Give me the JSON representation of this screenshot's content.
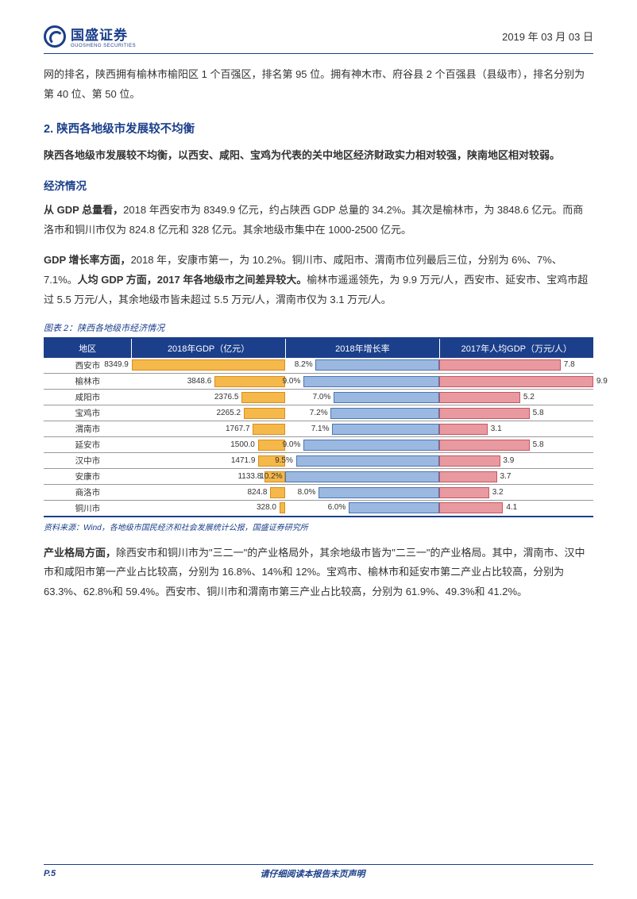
{
  "header": {
    "logo_main": "国盛证券",
    "logo_sub": "GUOSHENG SECURITIES",
    "date": "2019 年 03 月 03 日"
  },
  "intro_para": "网的排名，陕西拥有榆林市榆阳区 1 个百强区，排名第 95 位。拥有神木市、府谷县 2 个百强县（县级市），排名分别为第 40 位、第 50 位。",
  "section2": {
    "num": "2.",
    "title": " 陕西各地级市发展较不均衡",
    "summary": "陕西各地级市发展较不均衡，以西安、咸阳、宝鸡为代表的关中地区经济财政实力相对较强，陕南地区相对较弱。",
    "sub_heading": "经济情况",
    "para1_pre": "从 GDP 总量看，",
    "para1_body": "2018 年西安市为 8349.9 亿元，约占陕西 GDP 总量的 34.2%。其次是榆林市，为 3848.6 亿元。而商洛市和铜川市仅为 824.8 亿元和 328 亿元。其余地级市集中在 1000-2500 亿元。",
    "para2_b1": "GDP 增长率方面，",
    "para2_t1": "2018 年，安康市第一，为 10.2%。铜川市、咸阳市、渭南市位列最后三位，分别为 6%、7%、7.1%。",
    "para2_b2": "人均 GDP 方面，2017 年各地级市之间差异较大。",
    "para2_t2": "榆林市遥遥领先，为 9.9 万元/人，西安市、延安市、宝鸡市超过 5.5 万元/人，其余地级市皆未超过 5.5 万元/人，渭南市仅为 3.1 万元/人。"
  },
  "chart": {
    "title": "图表 2：陕西各地级市经济情况",
    "headers": [
      "地区",
      "2018年GDP（亿元）",
      "2018年增长率",
      "2017年人均GDP（万元/人）"
    ],
    "gdp_max": 8349.9,
    "growth_max": 10.2,
    "percap_max": 9.9,
    "colors": {
      "gdp_fill": "#f5b84a",
      "gdp_border": "#d98e1a",
      "growth_fill": "#9bb8e0",
      "growth_border": "#4a75b8",
      "percap_fill": "#e89aa0",
      "percap_border": "#c85560"
    },
    "rows": [
      {
        "region": "西安市",
        "gdp": 8349.9,
        "growth": 8.2,
        "percap": 7.8
      },
      {
        "region": "榆林市",
        "gdp": 3848.6,
        "growth": 9.0,
        "percap": 9.9
      },
      {
        "region": "咸阳市",
        "gdp": 2376.5,
        "growth": 7.0,
        "percap": 5.2
      },
      {
        "region": "宝鸡市",
        "gdp": 2265.2,
        "growth": 7.2,
        "percap": 5.8
      },
      {
        "region": "渭南市",
        "gdp": 1767.7,
        "growth": 7.1,
        "percap": 3.1
      },
      {
        "region": "延安市",
        "gdp": 1500.0,
        "growth": 9.0,
        "percap": 5.8
      },
      {
        "region": "汉中市",
        "gdp": 1471.9,
        "growth": 9.5,
        "percap": 3.9
      },
      {
        "region": "安康市",
        "gdp": 1133.8,
        "growth": 10.2,
        "percap": 3.7
      },
      {
        "region": "商洛市",
        "gdp": 824.8,
        "growth": 8.0,
        "percap": 3.2
      },
      {
        "region": "铜川市",
        "gdp": 328.0,
        "growth": 6.0,
        "percap": 4.1
      }
    ],
    "source": "资料来源：Wind，各地级市国民经济和社会发展统计公报，国盛证券研究所"
  },
  "para3_b": "产业格局方面，",
  "para3_t": "除西安市和铜川市为\"三二一\"的产业格局外，其余地级市皆为\"二三一\"的产业格局。其中，渭南市、汉中市和咸阳市第一产业占比较高，分别为 16.8%、14%和 12%。宝鸡市、榆林市和延安市第二产业占比较高，分别为 63.3%、62.8%和 59.4%。西安市、铜川市和渭南市第三产业占比较高，分别为 61.9%、49.3%和 41.2%。",
  "footer": {
    "page": "P.5",
    "text": "请仔细阅读本报告末页声明"
  }
}
